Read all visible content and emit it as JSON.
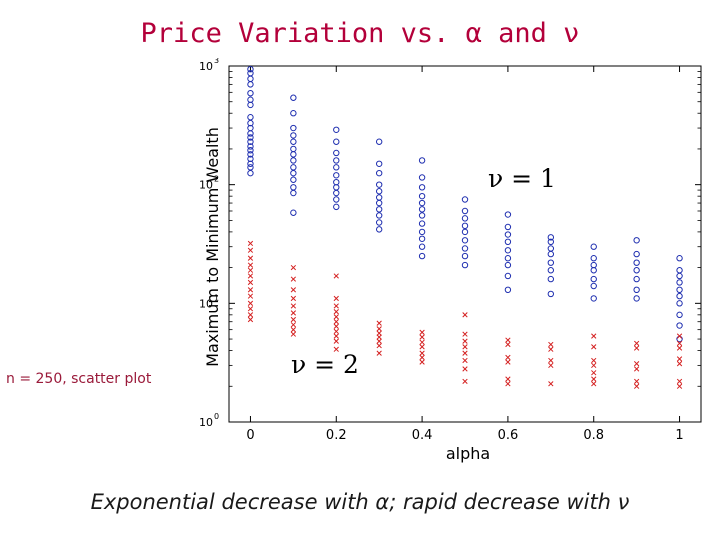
{
  "slide": {
    "title": "Price Variation vs. α and ν",
    "side_note": "n = 250, scatter plot",
    "caption": "Exponential decrease with α; rapid decrease with ν"
  },
  "colors": {
    "title": "#b3003a",
    "series_nu1": "#1f2fb0",
    "series_nu2": "#d42020",
    "axis": "#000000"
  },
  "chart_data": {
    "type": "scatter",
    "title": "",
    "xlabel": "alpha",
    "ylabel": "Maximum to Minimum Wealth",
    "x_ticks": [
      "0",
      "0.2",
      "0.4",
      "0.6",
      "0.8",
      "1"
    ],
    "y_ticks": [
      "10",
      "10",
      "10",
      "10"
    ],
    "y_tick_exponents": [
      "0",
      "1",
      "2",
      "3"
    ],
    "xlim": [
      -0.05,
      1.05
    ],
    "ylim": [
      1,
      1000
    ],
    "y_scale": "log",
    "grid": false,
    "annotations": [
      "ν = 1",
      "ν = 2"
    ],
    "series": [
      {
        "marker": "circle",
        "color": "#1f2fb0",
        "points": [
          [
            0,
            940
          ],
          [
            0,
            870
          ],
          [
            0,
            780
          ],
          [
            0,
            700
          ],
          [
            0,
            590
          ],
          [
            0,
            520
          ],
          [
            0,
            470
          ],
          [
            0,
            370
          ],
          [
            0,
            330
          ],
          [
            0,
            300
          ],
          [
            0,
            270
          ],
          [
            0,
            250
          ],
          [
            0,
            230
          ],
          [
            0,
            210
          ],
          [
            0,
            195
          ],
          [
            0,
            180
          ],
          [
            0,
            165
          ],
          [
            0,
            150
          ],
          [
            0,
            140
          ],
          [
            0,
            125
          ],
          [
            0.1,
            540
          ],
          [
            0.1,
            400
          ],
          [
            0.1,
            300
          ],
          [
            0.1,
            260
          ],
          [
            0.1,
            230
          ],
          [
            0.1,
            200
          ],
          [
            0.1,
            180
          ],
          [
            0.1,
            160
          ],
          [
            0.1,
            140
          ],
          [
            0.1,
            125
          ],
          [
            0.1,
            110
          ],
          [
            0.1,
            95
          ],
          [
            0.1,
            85
          ],
          [
            0.1,
            58
          ],
          [
            0.2,
            290
          ],
          [
            0.2,
            230
          ],
          [
            0.2,
            185
          ],
          [
            0.2,
            160
          ],
          [
            0.2,
            140
          ],
          [
            0.2,
            120
          ],
          [
            0.2,
            105
          ],
          [
            0.2,
            95
          ],
          [
            0.2,
            85
          ],
          [
            0.2,
            75
          ],
          [
            0.2,
            65
          ],
          [
            0.3,
            230
          ],
          [
            0.3,
            150
          ],
          [
            0.3,
            125
          ],
          [
            0.3,
            100
          ],
          [
            0.3,
            88
          ],
          [
            0.3,
            78
          ],
          [
            0.3,
            70
          ],
          [
            0.3,
            62
          ],
          [
            0.3,
            55
          ],
          [
            0.3,
            48
          ],
          [
            0.3,
            42
          ],
          [
            0.4,
            160
          ],
          [
            0.4,
            115
          ],
          [
            0.4,
            95
          ],
          [
            0.4,
            80
          ],
          [
            0.4,
            70
          ],
          [
            0.4,
            62
          ],
          [
            0.4,
            55
          ],
          [
            0.4,
            47
          ],
          [
            0.4,
            40
          ],
          [
            0.4,
            35
          ],
          [
            0.4,
            30
          ],
          [
            0.4,
            25
          ],
          [
            0.5,
            75
          ],
          [
            0.5,
            60
          ],
          [
            0.5,
            52
          ],
          [
            0.5,
            45
          ],
          [
            0.5,
            40
          ],
          [
            0.5,
            34
          ],
          [
            0.5,
            29
          ],
          [
            0.5,
            25
          ],
          [
            0.5,
            21
          ],
          [
            0.6,
            56
          ],
          [
            0.6,
            44
          ],
          [
            0.6,
            38
          ],
          [
            0.6,
            33
          ],
          [
            0.6,
            28
          ],
          [
            0.6,
            24
          ],
          [
            0.6,
            21
          ],
          [
            0.6,
            17
          ],
          [
            0.6,
            13
          ],
          [
            0.7,
            36
          ],
          [
            0.7,
            33
          ],
          [
            0.7,
            29
          ],
          [
            0.7,
            26
          ],
          [
            0.7,
            22
          ],
          [
            0.7,
            19
          ],
          [
            0.7,
            16
          ],
          [
            0.7,
            12
          ],
          [
            0.8,
            30
          ],
          [
            0.8,
            24
          ],
          [
            0.8,
            21
          ],
          [
            0.8,
            19
          ],
          [
            0.8,
            16
          ],
          [
            0.8,
            14
          ],
          [
            0.8,
            11
          ],
          [
            0.9,
            34
          ],
          [
            0.9,
            26
          ],
          [
            0.9,
            22
          ],
          [
            0.9,
            19
          ],
          [
            0.9,
            16
          ],
          [
            0.9,
            13
          ],
          [
            0.9,
            11
          ],
          [
            1,
            24
          ],
          [
            1,
            19
          ],
          [
            1,
            17
          ],
          [
            1,
            15
          ],
          [
            1,
            13
          ],
          [
            1,
            11.5
          ],
          [
            1,
            10
          ],
          [
            1,
            8
          ],
          [
            1,
            6.5
          ],
          [
            1,
            5
          ]
        ]
      },
      {
        "marker": "x",
        "color": "#d42020",
        "points": [
          [
            0,
            32
          ],
          [
            0,
            28
          ],
          [
            0,
            24
          ],
          [
            0,
            21
          ],
          [
            0,
            19
          ],
          [
            0,
            17
          ],
          [
            0,
            15
          ],
          [
            0,
            13
          ],
          [
            0,
            11.5
          ],
          [
            0,
            10
          ],
          [
            0,
            9
          ],
          [
            0,
            8
          ],
          [
            0,
            7.3
          ],
          [
            0.1,
            20
          ],
          [
            0.1,
            16
          ],
          [
            0.1,
            13
          ],
          [
            0.1,
            11
          ],
          [
            0.1,
            9.5
          ],
          [
            0.1,
            8.3
          ],
          [
            0.1,
            7.3
          ],
          [
            0.1,
            6.6
          ],
          [
            0.1,
            6
          ],
          [
            0.1,
            5.5
          ],
          [
            0.2,
            17
          ],
          [
            0.2,
            11
          ],
          [
            0.2,
            9.5
          ],
          [
            0.2,
            8.5
          ],
          [
            0.2,
            7.7
          ],
          [
            0.2,
            7
          ],
          [
            0.2,
            6.4
          ],
          [
            0.2,
            5.8
          ],
          [
            0.2,
            5.3
          ],
          [
            0.2,
            4.8
          ],
          [
            0.2,
            4.1
          ],
          [
            0.3,
            6.8
          ],
          [
            0.3,
            6.1
          ],
          [
            0.3,
            5.6
          ],
          [
            0.3,
            5.2
          ],
          [
            0.3,
            4.8
          ],
          [
            0.3,
            4.4
          ],
          [
            0.3,
            3.8
          ],
          [
            0.4,
            5.7
          ],
          [
            0.4,
            5.2
          ],
          [
            0.4,
            4.7
          ],
          [
            0.4,
            4.3
          ],
          [
            0.4,
            3.8
          ],
          [
            0.4,
            3.5
          ],
          [
            0.4,
            3.2
          ],
          [
            0.5,
            8
          ],
          [
            0.5,
            5.5
          ],
          [
            0.5,
            4.8
          ],
          [
            0.5,
            4.3
          ],
          [
            0.5,
            3.8
          ],
          [
            0.5,
            3.3
          ],
          [
            0.5,
            2.8
          ],
          [
            0.5,
            2.2
          ],
          [
            0.6,
            4.9
          ],
          [
            0.6,
            4.5
          ],
          [
            0.6,
            3.5
          ],
          [
            0.6,
            3.2
          ],
          [
            0.6,
            2.3
          ],
          [
            0.6,
            2.1
          ],
          [
            0.7,
            4.5
          ],
          [
            0.7,
            4.1
          ],
          [
            0.7,
            3.3
          ],
          [
            0.7,
            3.0
          ],
          [
            0.7,
            2.1
          ],
          [
            0.8,
            5.3
          ],
          [
            0.8,
            4.3
          ],
          [
            0.8,
            3.3
          ],
          [
            0.8,
            3.0
          ],
          [
            0.8,
            2.6
          ],
          [
            0.8,
            2.3
          ],
          [
            0.8,
            2.1
          ],
          [
            0.9,
            4.6
          ],
          [
            0.9,
            4.2
          ],
          [
            0.9,
            3.1
          ],
          [
            0.9,
            2.8
          ],
          [
            0.9,
            2.2
          ],
          [
            0.9,
            2.0
          ],
          [
            1,
            5.3
          ],
          [
            1,
            4.6
          ],
          [
            1,
            4.2
          ],
          [
            1,
            3.4
          ],
          [
            1,
            3.1
          ],
          [
            1,
            2.2
          ],
          [
            1,
            2.0
          ]
        ]
      }
    ]
  }
}
